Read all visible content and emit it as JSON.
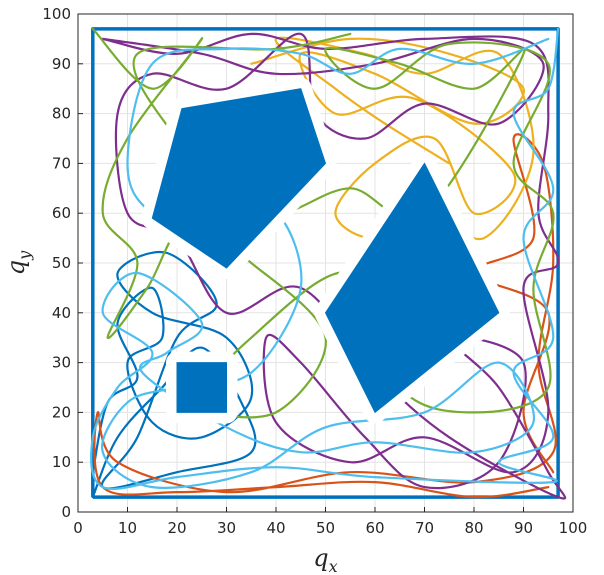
{
  "chart_data": {
    "type": "line",
    "title": "",
    "xlabel": {
      "base": "q",
      "sub": "x"
    },
    "ylabel": {
      "base": "q",
      "sub": "y"
    },
    "xlim": [
      0,
      100
    ],
    "ylim": [
      0,
      100
    ],
    "xticks": [
      "0",
      "10",
      "20",
      "30",
      "40",
      "50",
      "60",
      "70",
      "80",
      "90",
      "100"
    ],
    "yticks": [
      "0",
      "10",
      "20",
      "30",
      "40",
      "50",
      "60",
      "70",
      "80",
      "90",
      "100"
    ],
    "grid": true,
    "boundary": {
      "color": "#0072BD",
      "points": [
        [
          3,
          3
        ],
        [
          97,
          3
        ],
        [
          97,
          97
        ],
        [
          3,
          97
        ],
        [
          3,
          3
        ]
      ]
    },
    "obstacles": [
      {
        "name": "pentagon",
        "color": "#0072BD",
        "points": [
          [
            21,
            81
          ],
          [
            45,
            85
          ],
          [
            50,
            70
          ],
          [
            30,
            49
          ],
          [
            15,
            59
          ]
        ]
      },
      {
        "name": "diamond",
        "color": "#0072BD",
        "points": [
          [
            70,
            70
          ],
          [
            85,
            40
          ],
          [
            60,
            20
          ],
          [
            50,
            40
          ]
        ]
      },
      {
        "name": "square",
        "color": "#0072BD",
        "points": [
          [
            20,
            20
          ],
          [
            30,
            20
          ],
          [
            30,
            30
          ],
          [
            20,
            30
          ]
        ]
      }
    ],
    "series": [
      {
        "color": "#0072BD",
        "points": [
          [
            3,
            8
          ],
          [
            6,
            22
          ],
          [
            12,
            27
          ],
          [
            8,
            38
          ],
          [
            15,
            45
          ],
          [
            17,
            35
          ],
          [
            10,
            30
          ],
          [
            15,
            18
          ],
          [
            25,
            15
          ],
          [
            35,
            23
          ],
          [
            30,
            35
          ],
          [
            15,
            40
          ],
          [
            8,
            48
          ],
          [
            18,
            52
          ],
          [
            28,
            42
          ],
          [
            20,
            35
          ],
          [
            12,
            15
          ],
          [
            5,
            5
          ],
          [
            20,
            8
          ],
          [
            35,
            12
          ],
          [
            33,
            22
          ],
          [
            25,
            33
          ],
          [
            17,
            25
          ],
          [
            8,
            15
          ],
          [
            3,
            3
          ]
        ]
      },
      {
        "color": "#D95319",
        "points": [
          [
            95,
            5
          ],
          [
            80,
            3
          ],
          [
            60,
            6
          ],
          [
            40,
            5
          ],
          [
            20,
            4
          ],
          [
            5,
            5
          ],
          [
            4,
            20
          ],
          [
            8,
            10
          ],
          [
            30,
            4
          ],
          [
            55,
            8
          ],
          [
            80,
            6
          ],
          [
            96,
            12
          ],
          [
            93,
            30
          ],
          [
            96,
            50
          ],
          [
            94,
            70
          ],
          [
            88,
            75
          ],
          [
            92,
            55
          ],
          [
            80,
            48
          ],
          [
            95,
            40
          ],
          [
            90,
            20
          ],
          [
            96,
            8
          ]
        ]
      },
      {
        "color": "#EDB120",
        "points": [
          [
            35,
            90
          ],
          [
            55,
            95
          ],
          [
            75,
            92
          ],
          [
            90,
            85
          ],
          [
            80,
            78
          ],
          [
            60,
            88
          ],
          [
            45,
            92
          ],
          [
            52,
            80
          ],
          [
            68,
            83
          ],
          [
            88,
            68
          ],
          [
            80,
            60
          ],
          [
            72,
            75
          ],
          [
            60,
            70
          ],
          [
            52,
            60
          ],
          [
            60,
            55
          ],
          [
            70,
            62
          ],
          [
            82,
            55
          ],
          [
            92,
            72
          ],
          [
            85,
            92
          ],
          [
            70,
            88
          ],
          [
            58,
            92
          ],
          [
            40,
            95
          ],
          [
            52,
            85
          ],
          [
            62,
            78
          ],
          [
            75,
            70
          ]
        ]
      },
      {
        "color": "#7E2F8E",
        "points": [
          [
            5,
            95
          ],
          [
            20,
            92
          ],
          [
            35,
            96
          ],
          [
            50,
            93
          ],
          [
            70,
            95
          ],
          [
            92,
            94
          ],
          [
            95,
            80
          ],
          [
            93,
            60
          ],
          [
            97,
            50
          ],
          [
            90,
            45
          ],
          [
            95,
            20
          ],
          [
            88,
            8
          ],
          [
            70,
            15
          ],
          [
            55,
            10
          ],
          [
            40,
            18
          ],
          [
            38,
            35
          ],
          [
            45,
            30
          ],
          [
            58,
            15
          ],
          [
            70,
            5
          ],
          [
            85,
            10
          ],
          [
            90,
            30
          ],
          [
            75,
            35
          ],
          [
            85,
            25
          ],
          [
            95,
            8
          ],
          [
            97,
            3
          ],
          [
            75,
            15
          ],
          [
            60,
            28
          ],
          [
            45,
            45
          ],
          [
            30,
            40
          ],
          [
            20,
            55
          ],
          [
            10,
            60
          ],
          [
            8,
            80
          ],
          [
            15,
            88
          ],
          [
            30,
            85
          ],
          [
            45,
            96
          ],
          [
            48,
            80
          ],
          [
            58,
            75
          ],
          [
            70,
            82
          ],
          [
            85,
            78
          ],
          [
            94,
            90
          ],
          [
            80,
            95
          ],
          [
            60,
            90
          ],
          [
            40,
            88
          ],
          [
            25,
            92
          ],
          [
            5,
            95
          ]
        ]
      },
      {
        "color": "#77AC30",
        "points": [
          [
            3,
            97
          ],
          [
            15,
            85
          ],
          [
            25,
            95
          ],
          [
            10,
            75
          ],
          [
            5,
            60
          ],
          [
            12,
            50
          ],
          [
            6,
            35
          ],
          [
            14,
            45
          ],
          [
            22,
            58
          ],
          [
            35,
            50
          ],
          [
            50,
            35
          ],
          [
            40,
            20
          ],
          [
            25,
            22
          ],
          [
            35,
            35
          ],
          [
            55,
            48
          ],
          [
            65,
            25
          ],
          [
            80,
            20
          ],
          [
            95,
            25
          ],
          [
            92,
            45
          ],
          [
            96,
            60
          ],
          [
            88,
            70
          ],
          [
            95,
            90
          ],
          [
            75,
            94
          ],
          [
            60,
            85
          ],
          [
            50,
            93
          ],
          [
            65,
            90
          ],
          [
            80,
            85
          ],
          [
            90,
            92
          ],
          [
            70,
            60
          ],
          [
            55,
            65
          ],
          [
            40,
            60
          ],
          [
            30,
            68
          ],
          [
            20,
            75
          ],
          [
            12,
            92
          ],
          [
            40,
            93
          ],
          [
            55,
            96
          ]
        ]
      },
      {
        "color": "#4DBEEE",
        "points": [
          [
            97,
            97
          ],
          [
            95,
            85
          ],
          [
            88,
            80
          ],
          [
            96,
            65
          ],
          [
            90,
            55
          ],
          [
            96,
            35
          ],
          [
            88,
            28
          ],
          [
            96,
            15
          ],
          [
            85,
            10
          ],
          [
            96,
            6
          ],
          [
            60,
            7
          ],
          [
            40,
            9
          ],
          [
            20,
            7
          ],
          [
            5,
            5
          ],
          [
            3,
            15
          ],
          [
            8,
            25
          ],
          [
            15,
            32
          ],
          [
            5,
            40
          ],
          [
            12,
            48
          ],
          [
            25,
            38
          ],
          [
            18,
            32
          ],
          [
            13,
            28
          ],
          [
            30,
            17
          ],
          [
            45,
            12
          ],
          [
            60,
            14
          ],
          [
            80,
            12
          ],
          [
            92,
            18
          ],
          [
            85,
            30
          ],
          [
            70,
            20
          ],
          [
            50,
            17
          ],
          [
            35,
            8
          ],
          [
            15,
            5
          ],
          [
            5,
            12
          ],
          [
            10,
            22
          ],
          [
            20,
            25
          ],
          [
            35,
            28
          ],
          [
            45,
            45
          ],
          [
            40,
            60
          ],
          [
            30,
            55
          ],
          [
            15,
            60
          ],
          [
            10,
            70
          ],
          [
            15,
            90
          ],
          [
            30,
            93
          ],
          [
            45,
            92
          ],
          [
            55,
            88
          ],
          [
            65,
            93
          ],
          [
            80,
            90
          ],
          [
            95,
            95
          ]
        ]
      }
    ]
  }
}
